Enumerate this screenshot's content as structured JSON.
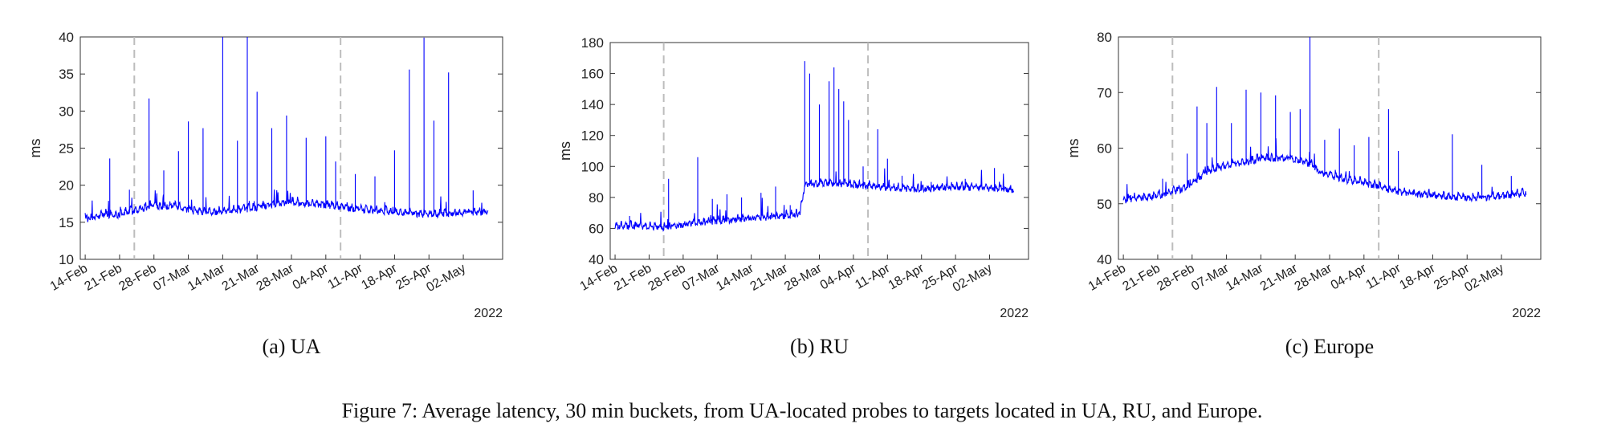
{
  "figure_caption": "Figure 7: Average latency, 30 min buckets, from UA-located probes to targets located in UA, RU, and Europe.",
  "line_color": "#0000ff",
  "event_line_color": "#bdbdbd",
  "chart_data": [
    {
      "type": "line",
      "subcaption": "(a) UA",
      "xlabel": "",
      "ylabel": "ms",
      "year_label": "2022",
      "x_start": "2022-02-13",
      "x_end": "2022-05-10",
      "xticks": [
        "14-Feb",
        "21-Feb",
        "28-Feb",
        "07-Mar",
        "14-Mar",
        "21-Mar",
        "28-Mar",
        "04-Apr",
        "11-Apr",
        "18-Apr",
        "25-Apr",
        "02-May"
      ],
      "ylim": [
        10,
        40
      ],
      "yticks": [
        10,
        15,
        20,
        25,
        30,
        35,
        40
      ],
      "event_dates": [
        "2022-02-24",
        "2022-04-07"
      ],
      "grid": false,
      "series": [
        {
          "values": [
            [
              "2022-02-14",
              15.3
            ],
            [
              "2022-02-16",
              15.5
            ],
            [
              "2022-02-18",
              16.0
            ],
            [
              "2022-02-20",
              15.8
            ],
            [
              "2022-02-22",
              16.2
            ],
            [
              "2022-02-24",
              16.5
            ],
            [
              "2022-02-26",
              16.8
            ],
            [
              "2022-02-28",
              17.2
            ],
            [
              "2022-03-02",
              17.0
            ],
            [
              "2022-03-04",
              17.2
            ],
            [
              "2022-03-06",
              16.8
            ],
            [
              "2022-03-08",
              16.4
            ],
            [
              "2022-03-10",
              16.3
            ],
            [
              "2022-03-12",
              16.2
            ],
            [
              "2022-03-14",
              16.3
            ],
            [
              "2022-03-16",
              16.5
            ],
            [
              "2022-03-18",
              16.6
            ],
            [
              "2022-03-20",
              16.8
            ],
            [
              "2022-03-22",
              17.0
            ],
            [
              "2022-03-24",
              17.3
            ],
            [
              "2022-03-26",
              17.5
            ],
            [
              "2022-03-28",
              17.6
            ],
            [
              "2022-03-30",
              17.5
            ],
            [
              "2022-04-01",
              17.4
            ],
            [
              "2022-04-03",
              17.3
            ],
            [
              "2022-04-05",
              17.2
            ],
            [
              "2022-04-07",
              17.0
            ],
            [
              "2022-04-09",
              16.8
            ],
            [
              "2022-04-11",
              16.6
            ],
            [
              "2022-04-13",
              16.5
            ],
            [
              "2022-04-15",
              16.4
            ],
            [
              "2022-04-17",
              16.3
            ],
            [
              "2022-04-19",
              16.2
            ],
            [
              "2022-04-21",
              16.1
            ],
            [
              "2022-04-23",
              16.0
            ],
            [
              "2022-04-25",
              16.0
            ],
            [
              "2022-04-27",
              16.0
            ],
            [
              "2022-04-29",
              16.1
            ],
            [
              "2022-05-01",
              16.1
            ],
            [
              "2022-05-03",
              16.2
            ],
            [
              "2022-05-05",
              16.2
            ],
            [
              "2022-05-07",
              16.3
            ]
          ],
          "spikes": [
            [
              "2022-02-19",
              23.6
            ],
            [
              "2022-02-23",
              19.4
            ],
            [
              "2022-02-27",
              31.7
            ],
            [
              "2022-03-02",
              22.0
            ],
            [
              "2022-03-05",
              24.6
            ],
            [
              "2022-03-07",
              28.6
            ],
            [
              "2022-03-10",
              27.7
            ],
            [
              "2022-03-14",
              40.0
            ],
            [
              "2022-03-17",
              26.0
            ],
            [
              "2022-03-19",
              40.0
            ],
            [
              "2022-03-21",
              32.6
            ],
            [
              "2022-03-24",
              27.7
            ],
            [
              "2022-03-27",
              29.4
            ],
            [
              "2022-03-31",
              26.4
            ],
            [
              "2022-04-04",
              26.6
            ],
            [
              "2022-04-06",
              23.2
            ],
            [
              "2022-04-10",
              21.5
            ],
            [
              "2022-04-14",
              21.2
            ],
            [
              "2022-04-18",
              24.7
            ],
            [
              "2022-04-21",
              35.6
            ],
            [
              "2022-04-24",
              39.9
            ],
            [
              "2022-04-26",
              28.7
            ],
            [
              "2022-04-29",
              35.2
            ],
            [
              "2022-05-04",
              19.3
            ]
          ]
        }
      ]
    },
    {
      "type": "line",
      "subcaption": "(b) RU",
      "xlabel": "",
      "ylabel": "ms",
      "year_label": "2022",
      "x_start": "2022-02-13",
      "x_end": "2022-05-10",
      "xticks": [
        "14-Feb",
        "21-Feb",
        "28-Feb",
        "07-Mar",
        "14-Mar",
        "21-Mar",
        "28-Mar",
        "04-Apr",
        "11-Apr",
        "18-Apr",
        "25-Apr",
        "02-May"
      ],
      "ylim": [
        40,
        180
      ],
      "yticks": [
        40,
        60,
        80,
        100,
        120,
        140,
        160,
        180
      ],
      "event_dates": [
        "2022-02-24",
        "2022-04-07"
      ],
      "grid": false,
      "series": [
        {
          "values": [
            [
              "2022-02-14",
              60.5
            ],
            [
              "2022-02-16",
              60.8
            ],
            [
              "2022-02-18",
              61.0
            ],
            [
              "2022-02-20",
              60.8
            ],
            [
              "2022-02-22",
              60.5
            ],
            [
              "2022-02-24",
              60.2
            ],
            [
              "2022-02-26",
              61.0
            ],
            [
              "2022-02-28",
              62.0
            ],
            [
              "2022-03-02",
              63.0
            ],
            [
              "2022-03-04",
              63.5
            ],
            [
              "2022-03-06",
              64.0
            ],
            [
              "2022-03-08",
              64.5
            ],
            [
              "2022-03-10",
              65.0
            ],
            [
              "2022-03-12",
              65.5
            ],
            [
              "2022-03-14",
              66.0
            ],
            [
              "2022-03-16",
              66.5
            ],
            [
              "2022-03-18",
              67.0
            ],
            [
              "2022-03-20",
              67.5
            ],
            [
              "2022-03-22",
              68.0
            ],
            [
              "2022-03-24",
              69.0
            ],
            [
              "2022-03-25",
              87.0
            ],
            [
              "2022-03-27",
              88.0
            ],
            [
              "2022-03-29",
              89.0
            ],
            [
              "2022-03-31",
              88.5
            ],
            [
              "2022-04-02",
              88.0
            ],
            [
              "2022-04-04",
              87.5
            ],
            [
              "2022-04-06",
              87.0
            ],
            [
              "2022-04-08",
              86.5
            ],
            [
              "2022-04-10",
              86.0
            ],
            [
              "2022-04-12",
              85.5
            ],
            [
              "2022-04-14",
              85.0
            ],
            [
              "2022-04-16",
              85.0
            ],
            [
              "2022-04-18",
              85.0
            ],
            [
              "2022-04-20",
              85.0
            ],
            [
              "2022-04-22",
              85.5
            ],
            [
              "2022-04-24",
              86.0
            ],
            [
              "2022-04-26",
              86.5
            ],
            [
              "2022-04-28",
              86.0
            ],
            [
              "2022-04-30",
              85.5
            ],
            [
              "2022-05-02",
              85.0
            ],
            [
              "2022-05-04",
              85.0
            ],
            [
              "2022-05-07",
              84.5
            ]
          ],
          "spikes": [
            [
              "2022-02-17",
              68.0
            ],
            [
              "2022-02-25",
              92.0
            ],
            [
              "2022-03-03",
              106.0
            ],
            [
              "2022-03-06",
              79.0
            ],
            [
              "2022-03-09",
              82.0
            ],
            [
              "2022-03-12",
              80.0
            ],
            [
              "2022-03-16",
              83.0
            ],
            [
              "2022-03-19",
              87.0
            ],
            [
              "2022-03-22",
              75.0
            ],
            [
              "2022-03-25",
              168.0
            ],
            [
              "2022-03-26",
              160.0
            ],
            [
              "2022-03-28",
              140.0
            ],
            [
              "2022-03-30",
              155.0
            ],
            [
              "2022-03-31",
              164.0
            ],
            [
              "2022-04-01",
              150.0
            ],
            [
              "2022-04-02",
              142.0
            ],
            [
              "2022-04-03",
              130.0
            ],
            [
              "2022-04-06",
              100.0
            ],
            [
              "2022-04-09",
              124.0
            ],
            [
              "2022-04-11",
              105.0
            ],
            [
              "2022-04-14",
              94.0
            ],
            [
              "2022-04-20",
              90.0
            ],
            [
              "2022-04-27",
              92.0
            ],
            [
              "2022-05-03",
              99.0
            ]
          ]
        }
      ]
    },
    {
      "type": "line",
      "subcaption": "(c) Europe",
      "xlabel": "",
      "ylabel": "ms",
      "year_label": "2022",
      "x_start": "2022-02-13",
      "x_end": "2022-05-10",
      "xticks": [
        "14-Feb",
        "21-Feb",
        "28-Feb",
        "07-Mar",
        "14-Mar",
        "21-Mar",
        "28-Mar",
        "04-Apr",
        "11-Apr",
        "18-Apr",
        "25-Apr",
        "02-May"
      ],
      "ylim": [
        40,
        80
      ],
      "yticks": [
        40,
        50,
        60,
        70,
        80
      ],
      "event_dates": [
        "2022-02-24",
        "2022-04-07"
      ],
      "grid": false,
      "series": [
        {
          "values": [
            [
              "2022-02-14",
              50.5
            ],
            [
              "2022-02-16",
              50.8
            ],
            [
              "2022-02-18",
              51.0
            ],
            [
              "2022-02-20",
              51.2
            ],
            [
              "2022-02-22",
              51.5
            ],
            [
              "2022-02-24",
              52.0
            ],
            [
              "2022-02-26",
              52.5
            ],
            [
              "2022-02-28",
              53.5
            ],
            [
              "2022-03-02",
              55.0
            ],
            [
              "2022-03-04",
              56.0
            ],
            [
              "2022-03-06",
              56.5
            ],
            [
              "2022-03-08",
              57.0
            ],
            [
              "2022-03-10",
              57.0
            ],
            [
              "2022-03-12",
              57.5
            ],
            [
              "2022-03-14",
              58.0
            ],
            [
              "2022-03-16",
              58.0
            ],
            [
              "2022-03-18",
              58.0
            ],
            [
              "2022-03-20",
              58.0
            ],
            [
              "2022-03-22",
              57.5
            ],
            [
              "2022-03-24",
              57.0
            ],
            [
              "2022-03-26",
              55.5
            ],
            [
              "2022-03-28",
              55.0
            ],
            [
              "2022-03-30",
              54.5
            ],
            [
              "2022-04-01",
              54.0
            ],
            [
              "2022-04-03",
              53.8
            ],
            [
              "2022-04-05",
              53.5
            ],
            [
              "2022-04-07",
              53.0
            ],
            [
              "2022-04-09",
              52.5
            ],
            [
              "2022-04-11",
              52.0
            ],
            [
              "2022-04-13",
              51.8
            ],
            [
              "2022-04-15",
              51.5
            ],
            [
              "2022-04-17",
              51.5
            ],
            [
              "2022-04-19",
              51.3
            ],
            [
              "2022-04-21",
              51.2
            ],
            [
              "2022-04-23",
              51.0
            ],
            [
              "2022-04-25",
              51.0
            ],
            [
              "2022-04-27",
              51.0
            ],
            [
              "2022-04-29",
              51.0
            ],
            [
              "2022-05-01",
              51.2
            ],
            [
              "2022-05-03",
              51.3
            ],
            [
              "2022-05-05",
              51.5
            ],
            [
              "2022-05-07",
              51.8
            ]
          ],
          "spikes": [
            [
              "2022-02-22",
              54.5
            ],
            [
              "2022-02-27",
              59.0
            ],
            [
              "2022-03-01",
              67.5
            ],
            [
              "2022-03-03",
              64.5
            ],
            [
              "2022-03-05",
              71.0
            ],
            [
              "2022-03-08",
              64.5
            ],
            [
              "2022-03-11",
              70.5
            ],
            [
              "2022-03-14",
              70.0
            ],
            [
              "2022-03-17",
              69.5
            ],
            [
              "2022-03-20",
              66.5
            ],
            [
              "2022-03-22",
              67.0
            ],
            [
              "2022-03-24",
              80.0
            ],
            [
              "2022-03-27",
              61.5
            ],
            [
              "2022-03-30",
              63.5
            ],
            [
              "2022-04-02",
              60.5
            ],
            [
              "2022-04-05",
              62.0
            ],
            [
              "2022-04-09",
              67.0
            ],
            [
              "2022-04-11",
              59.5
            ],
            [
              "2022-04-22",
              62.5
            ],
            [
              "2022-04-28",
              57.0
            ],
            [
              "2022-05-04",
              55.0
            ]
          ]
        }
      ]
    }
  ]
}
